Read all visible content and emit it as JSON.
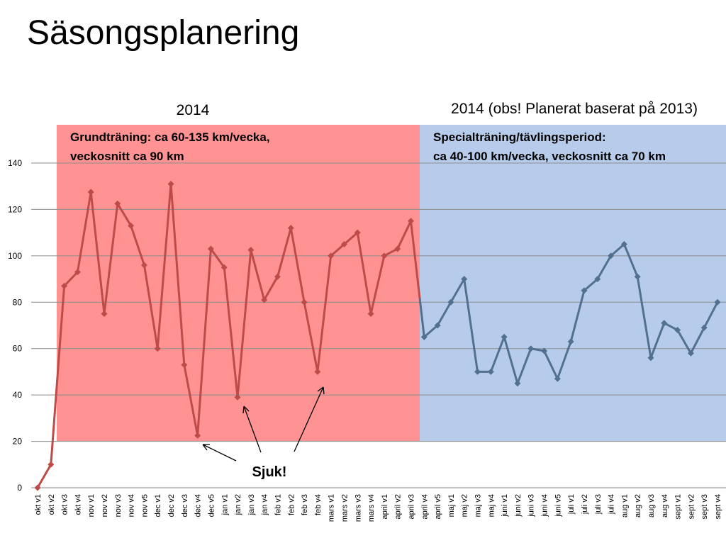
{
  "chart_data": {
    "type": "line",
    "title": "Säsongsplanering",
    "categories": [
      "okt v1",
      "okt v2",
      "okt v3",
      "okt v4",
      "nov v1",
      "nov v2",
      "nov v3",
      "nov v4",
      "nov v5",
      "dec v1",
      "dec v2",
      "dec v3",
      "dec v4",
      "dec v5",
      "jan v1",
      "jan v2",
      "jan v3",
      "jan v4",
      "feb v1",
      "feb v2",
      "feb v3",
      "feb v4",
      "mars v1",
      "mars v2",
      "mars v3",
      "mars v4",
      "april v1",
      "april v2",
      "april v3",
      "april v4",
      "april v5",
      "maj v1",
      "maj v2",
      "maj v3",
      "maj v4",
      "juni v1",
      "juni v2",
      "juni v3",
      "juni v4",
      "juni v5",
      "juli v1",
      "juli v2",
      "juli v3",
      "juli v4",
      "aug v1",
      "aug v2",
      "aug v3",
      "aug v4",
      "sept v1",
      "sept v2",
      "sept v3",
      "sept v4"
    ],
    "series": [
      {
        "color": "#be4b48",
        "values": [
          0,
          10,
          87,
          93,
          127.5,
          75,
          122.5,
          113,
          96,
          60,
          131,
          53,
          22.5,
          103,
          95,
          39,
          102.5,
          81,
          91,
          112,
          80,
          50,
          100,
          105,
          110,
          75,
          100,
          103,
          115,
          null,
          null,
          null,
          null,
          null,
          null,
          null,
          null,
          null,
          null,
          null,
          null,
          null,
          null,
          null,
          null,
          null,
          null,
          null,
          null,
          null,
          null,
          null
        ]
      },
      {
        "color": "#52708f",
        "values": [
          null,
          null,
          null,
          null,
          null,
          null,
          null,
          null,
          null,
          null,
          null,
          null,
          null,
          null,
          null,
          null,
          null,
          null,
          null,
          null,
          null,
          null,
          null,
          null,
          null,
          null,
          null,
          null,
          null,
          65,
          70,
          80,
          90,
          50,
          50,
          65,
          45,
          60,
          59,
          47,
          63,
          85,
          90,
          100,
          105,
          91,
          56,
          71,
          68,
          58,
          69,
          80
        ]
      }
    ],
    "ylim": [
      0,
      140
    ],
    "yticks": [
      0,
      20,
      40,
      60,
      80,
      100,
      120,
      140
    ],
    "grid": true,
    "regions": [
      {
        "heading": "2014",
        "lines": [
          "Grundträning: ca 60-135 km/vecka,",
          "veckosnitt ca 90 km"
        ],
        "color": "#ff9393"
      },
      {
        "heading": "2014 (obs! Planerat baserat på 2013)",
        "lines": [
          "Specialträning/tävlingsperiod:",
          "ca 40-100  km/vecka, veckosnitt ca 70 km"
        ],
        "color": "#b7cceb"
      }
    ],
    "annotation": "Sjuk!"
  }
}
